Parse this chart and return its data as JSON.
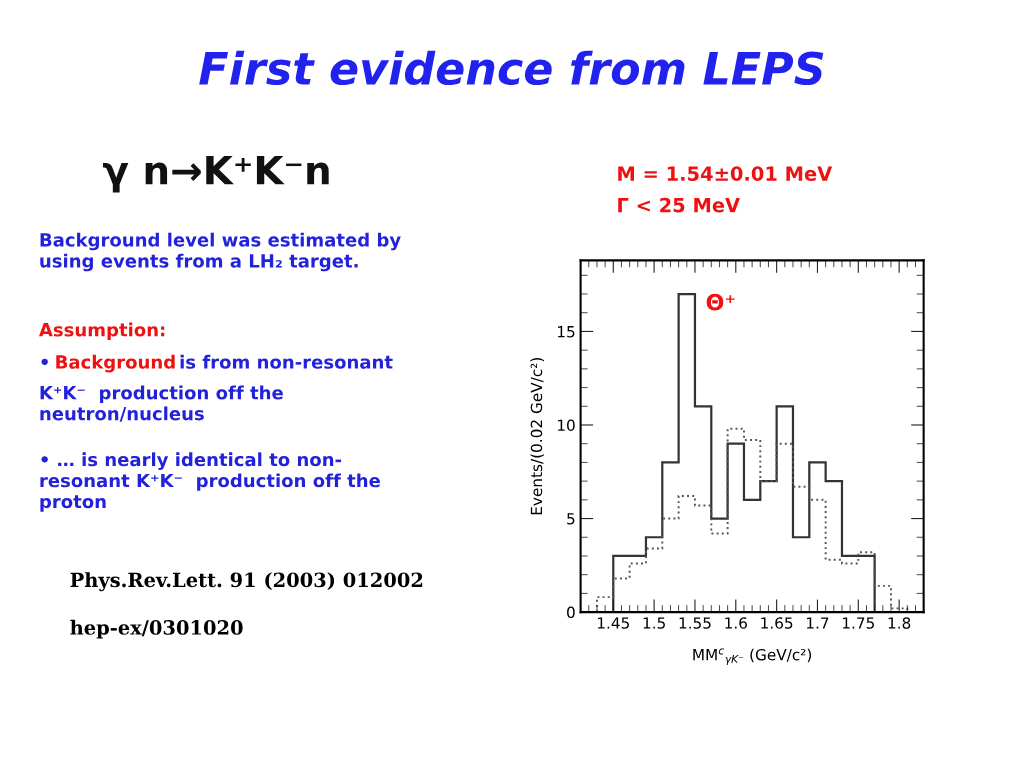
{
  "chart_data": {
    "type": "histogram",
    "title": "First evidence from LEPS",
    "subtitle": "γ n→K⁺K⁻n",
    "xlabel": "MM$^{c}$$_{γK⁻}$ (GeV/c²)",
    "ylabel": "Events/(0.02 GeV/c²)",
    "bins": [
      1.43,
      1.45,
      1.47,
      1.49,
      1.51,
      1.53,
      1.55,
      1.57,
      1.59,
      1.61,
      1.63,
      1.65,
      1.67,
      1.69,
      1.71,
      1.73,
      1.75,
      1.77,
      1.79,
      1.81
    ],
    "series": [
      {
        "color": "#333333",
        "line_style": "solid",
        "values": [
          0,
          3,
          3,
          4,
          8,
          17,
          11,
          5,
          9,
          6,
          7,
          11,
          4,
          8,
          7,
          3,
          3,
          0,
          0
        ]
      },
      {
        "color": "#555555",
        "line_style": "dotted",
        "values": [
          0.8,
          1.8,
          2.6,
          3.4,
          5.0,
          6.2,
          5.7,
          4.2,
          9.8,
          9.2,
          7.0,
          9.0,
          6.7,
          6.0,
          2.8,
          2.6,
          3.2,
          1.4,
          0.2
        ]
      }
    ],
    "xlim": [
      1.41,
      1.83
    ],
    "ylim": [
      0,
      18.8
    ],
    "xticks": [
      1.45,
      1.5,
      1.55,
      1.6,
      1.65,
      1.7,
      1.75,
      1.8
    ],
    "yticks": [
      0,
      5,
      10,
      15
    ],
    "grid": false,
    "legend": false,
    "annotations": [
      "Θ⁺",
      "M = 1.54±0.01 MeV",
      "Γ < 25 MeV",
      "Background level was estimated by\nusing events from a LH₂ target.",
      "Assumption:",
      "•",
      "Background",
      " is from non-resonant\nK⁺K⁻  production off the\nneutron/nucleus",
      "• … is nearly identical to non-\nresonant K⁺K⁻  production off the\nproton",
      "Phys.Rev.Lett. 91 (2003) 012002",
      "hep-ex/0301020"
    ]
  }
}
